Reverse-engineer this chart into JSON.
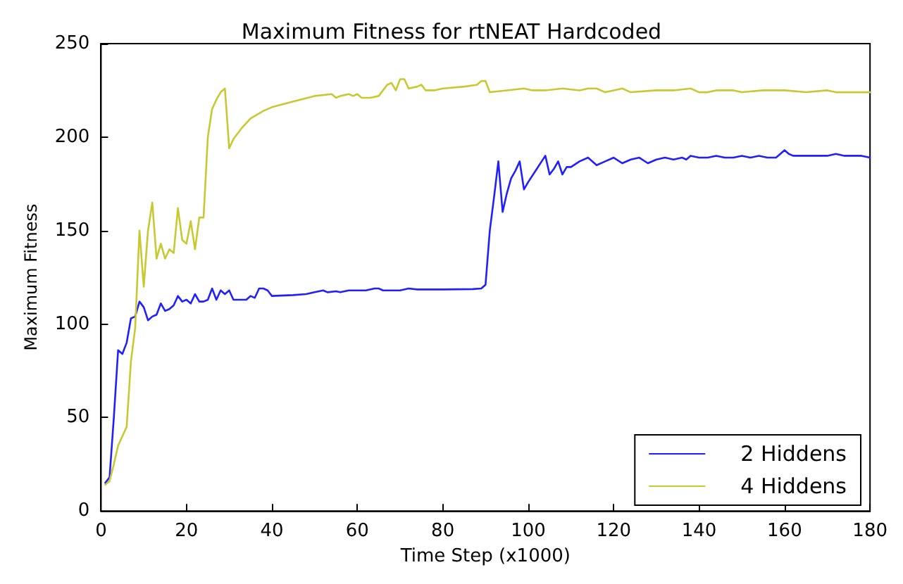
{
  "chart_data": {
    "type": "line",
    "title": "Maximum Fitness for rtNEAT Hardcoded",
    "xlabel": "Time Step (x1000)",
    "ylabel": "Maximum Fitness",
    "xlim": [
      0,
      180
    ],
    "xticks": [
      0,
      20,
      40,
      60,
      80,
      100,
      120,
      140,
      160,
      180
    ],
    "ylim": [
      0,
      250
    ],
    "yticks": [
      0,
      50,
      100,
      150,
      200,
      250
    ],
    "grid": false,
    "legend": "bottom right",
    "marker": "none",
    "line_style": "solid",
    "series": [
      {
        "name": "2 Hiddens",
        "color": "#2020ff",
        "x": [
          1,
          2,
          3,
          4,
          5,
          6,
          7,
          8,
          9,
          10,
          11,
          12,
          13,
          14,
          15,
          16,
          17,
          18,
          19,
          20,
          21,
          22,
          23,
          24,
          25,
          26,
          27,
          28,
          29,
          30,
          31,
          32,
          34,
          35,
          36,
          37,
          38,
          39,
          40,
          45,
          48,
          50,
          52,
          53,
          55,
          56,
          58,
          60,
          62,
          64,
          65,
          66,
          70,
          72,
          74,
          80,
          87,
          89,
          90,
          91,
          92,
          93,
          94,
          95,
          96,
          97,
          98,
          99,
          100,
          102,
          104,
          105,
          106,
          107,
          108,
          109,
          110,
          112,
          114,
          116,
          118,
          120,
          122,
          124,
          126,
          128,
          130,
          132,
          134,
          136,
          137,
          138,
          140,
          142,
          144,
          146,
          148,
          150,
          152,
          154,
          156,
          158,
          160,
          161,
          162,
          164,
          166,
          168,
          170,
          172,
          174,
          176,
          178,
          180
        ],
        "values": [
          15,
          18,
          50,
          86,
          84,
          90,
          103,
          104,
          112,
          109,
          102,
          104,
          105,
          111,
          107,
          108,
          110,
          115,
          112,
          113,
          111,
          116,
          112,
          112,
          113,
          119,
          113,
          118,
          116,
          118,
          113,
          113,
          113,
          115,
          114,
          119,
          119,
          118,
          115,
          115.5,
          116,
          117,
          118,
          117,
          117.5,
          117,
          118,
          118,
          118,
          119,
          119,
          118,
          118,
          119,
          118.5,
          118.5,
          118.7,
          119,
          121,
          150,
          168,
          187,
          160,
          170,
          178,
          182,
          187,
          172,
          176,
          183,
          190,
          180,
          183,
          187,
          180,
          184,
          184,
          187,
          189,
          185,
          187,
          189,
          186,
          188,
          189,
          186,
          188,
          189,
          188,
          189,
          188,
          190,
          189,
          189,
          190,
          189,
          189,
          190,
          189,
          190,
          189,
          189,
          193,
          191,
          190,
          190,
          190,
          190,
          190,
          191,
          190,
          190,
          190,
          189
        ]
      },
      {
        "name": "4 Hiddens",
        "color": "#c8c832",
        "x": [
          1,
          2,
          3,
          4,
          5,
          6,
          7,
          8,
          9,
          10,
          11,
          12,
          13,
          14,
          15,
          16,
          17,
          18,
          19,
          20,
          21,
          22,
          23,
          24,
          25,
          26,
          27,
          28,
          29,
          30,
          31,
          33,
          35,
          38,
          40,
          45,
          50,
          54,
          55,
          56,
          58,
          59,
          60,
          61,
          63,
          65,
          67,
          68,
          69,
          70,
          71,
          72,
          74,
          75,
          76,
          78,
          80,
          85,
          88,
          89,
          90,
          91,
          95,
          99,
          101,
          104,
          108,
          112,
          114,
          116,
          118,
          120,
          122,
          124,
          130,
          134,
          138,
          140,
          142,
          144,
          148,
          150,
          155,
          160,
          165,
          170,
          172,
          175,
          180
        ],
        "values": [
          14,
          16,
          25,
          35,
          40,
          45,
          80,
          98,
          150,
          120,
          150,
          165,
          135,
          143,
          135,
          140,
          138,
          162,
          145,
          143,
          155,
          140,
          157,
          157,
          200,
          215,
          220,
          224,
          226,
          194,
          199,
          205,
          210,
          214,
          216,
          219,
          222,
          223,
          221,
          222,
          223,
          222,
          223,
          221,
          221,
          222,
          228,
          229,
          225,
          231,
          231,
          226,
          227,
          228,
          225,
          225,
          226,
          227,
          228,
          230,
          230,
          224,
          225,
          226,
          225,
          225,
          226,
          225,
          226,
          226,
          224,
          225,
          226,
          224,
          225,
          225,
          226,
          224,
          224,
          225,
          225,
          224,
          225,
          225,
          224,
          225,
          224,
          224,
          224
        ]
      }
    ]
  }
}
